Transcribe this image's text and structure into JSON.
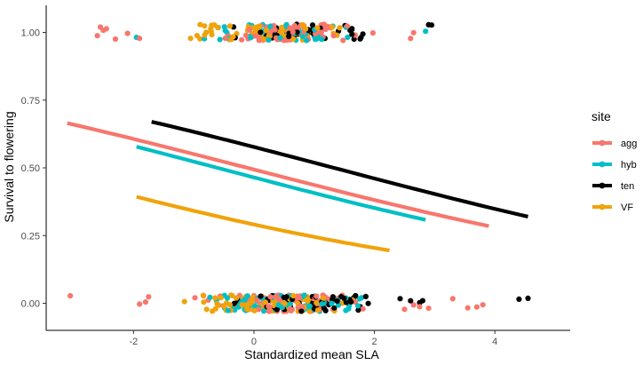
{
  "chart_data": {
    "type": "scatter",
    "title": "",
    "xlabel": "Standardized mean SLA",
    "ylabel": "Survival to flowering",
    "xlim": [
      -3.45,
      5.25
    ],
    "ylim": [
      -0.1,
      1.1
    ],
    "x_ticks": [
      -2,
      0,
      2,
      4
    ],
    "x_tick_labels": [
      "-2",
      "0",
      "2",
      "4"
    ],
    "y_ticks": [
      0,
      0.25,
      0.5,
      0.75,
      1
    ],
    "y_tick_labels": [
      "0.00",
      "0.25",
      "0.50",
      "0.75",
      "1.00"
    ],
    "grid": false,
    "legend": {
      "title": "site",
      "position": "right"
    },
    "jitter": {
      "x_range": [
        -2.0,
        2.9
      ],
      "y_amplitude": 0.03
    },
    "series": [
      {
        "name": "agg",
        "color": "#F8766D",
        "fit": {
          "x": [
            -3.1,
            3.9
          ],
          "y": [
            0.665,
            0.285
          ]
        },
        "points_top_x": [
          -2.6,
          -2.55,
          -2.5,
          -2.45,
          -2.3,
          -2.1,
          -1.9,
          2.6,
          2.65
        ],
        "points_bottom_x": [
          -3.05,
          -1.9,
          -1.8,
          -1.75,
          2.5,
          2.65,
          2.75,
          2.9,
          3.3,
          3.55,
          3.7,
          3.8
        ]
      },
      {
        "name": "hyb",
        "color": "#00BFC4",
        "fit": {
          "x": [
            -1.95,
            2.85
          ],
          "y": [
            0.578,
            0.308
          ]
        },
        "points_top_x": [
          -1.95,
          2.85
        ],
        "points_bottom_x": []
      },
      {
        "name": "ten",
        "color": "#000000",
        "fit": {
          "x": [
            -1.7,
            4.55
          ],
          "y": [
            0.67,
            0.32
          ]
        },
        "points_top_x": [
          2.9,
          2.95
        ],
        "points_bottom_x": [
          2.6,
          2.75,
          2.8,
          4.4,
          4.55
        ]
      },
      {
        "name": "VF",
        "color": "#F0A30A",
        "fit": {
          "x": [
            -1.95,
            2.25
          ],
          "y": [
            0.393,
            0.195
          ]
        },
        "points_top_x": [],
        "points_bottom_x": []
      }
    ]
  }
}
